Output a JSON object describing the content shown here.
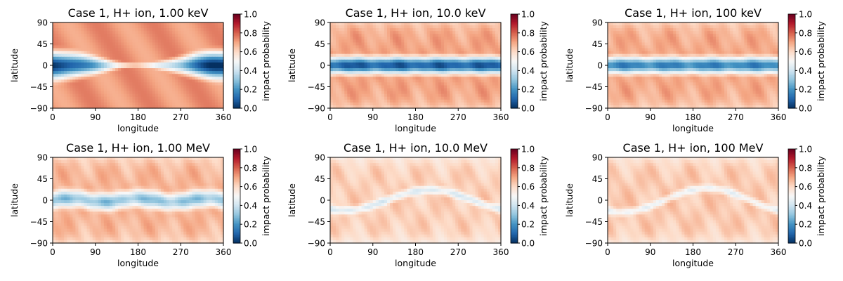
{
  "chart_data": {
    "type": "heatmap",
    "colormap": "RdBu_r",
    "colormap_stops": [
      "#053061",
      "#2166ac",
      "#4393c3",
      "#92c5de",
      "#d1e5f0",
      "#f7f7f7",
      "#fddbc7",
      "#f4a582",
      "#d6604d",
      "#b2182b",
      "#67001f"
    ],
    "xlabel": "longitude",
    "ylabel": "latitude",
    "xlim": [
      0,
      360
    ],
    "ylim": [
      -90,
      90
    ],
    "xticks": [
      "0",
      "90",
      "180",
      "270",
      "360"
    ],
    "yticks": [
      "90",
      "45",
      "0",
      "−45",
      "−90"
    ],
    "colorbar": {
      "label": "impact probability",
      "range": [
        0,
        1
      ],
      "ticks": [
        "1.0",
        "0.8",
        "0.6",
        "0.4",
        "0.2",
        "0.0"
      ]
    },
    "panels": [
      {
        "title": "Case 1, H+ ion, 1.00 keV",
        "pattern": "x_shape",
        "pole_value": 0.72,
        "equator_value": 0.0,
        "band_halfwidth_deg": 38,
        "wave_amplitude_deg": 0
      },
      {
        "title": "Case 1, H+ ion, 10.0 keV",
        "pattern": "band",
        "pole_value": 0.7,
        "equator_value": 0.08,
        "band_halfwidth_deg": 28,
        "wave_amplitude_deg": 0
      },
      {
        "title": "Case 1, H+ ion, 100 keV",
        "pattern": "band",
        "pole_value": 0.69,
        "equator_value": 0.16,
        "band_halfwidth_deg": 27,
        "wave_amplitude_deg": 0
      },
      {
        "title": "Case 1, H+ ion, 1.00 MeV",
        "pattern": "band",
        "pole_value": 0.67,
        "equator_value": 0.3,
        "band_halfwidth_deg": 28,
        "wave_amplitude_deg": 4
      },
      {
        "title": "Case 1, H+ ion, 10.0 MeV",
        "pattern": "wave",
        "pole_value": 0.62,
        "equator_value": 0.44,
        "band_halfwidth_deg": 14,
        "wave_amplitude_deg": 24
      },
      {
        "title": "Case 1, H+ ion, 100 MeV",
        "pattern": "wave",
        "pole_value": 0.63,
        "equator_value": 0.48,
        "band_halfwidth_deg": 13,
        "wave_amplitude_deg": 28
      }
    ]
  }
}
